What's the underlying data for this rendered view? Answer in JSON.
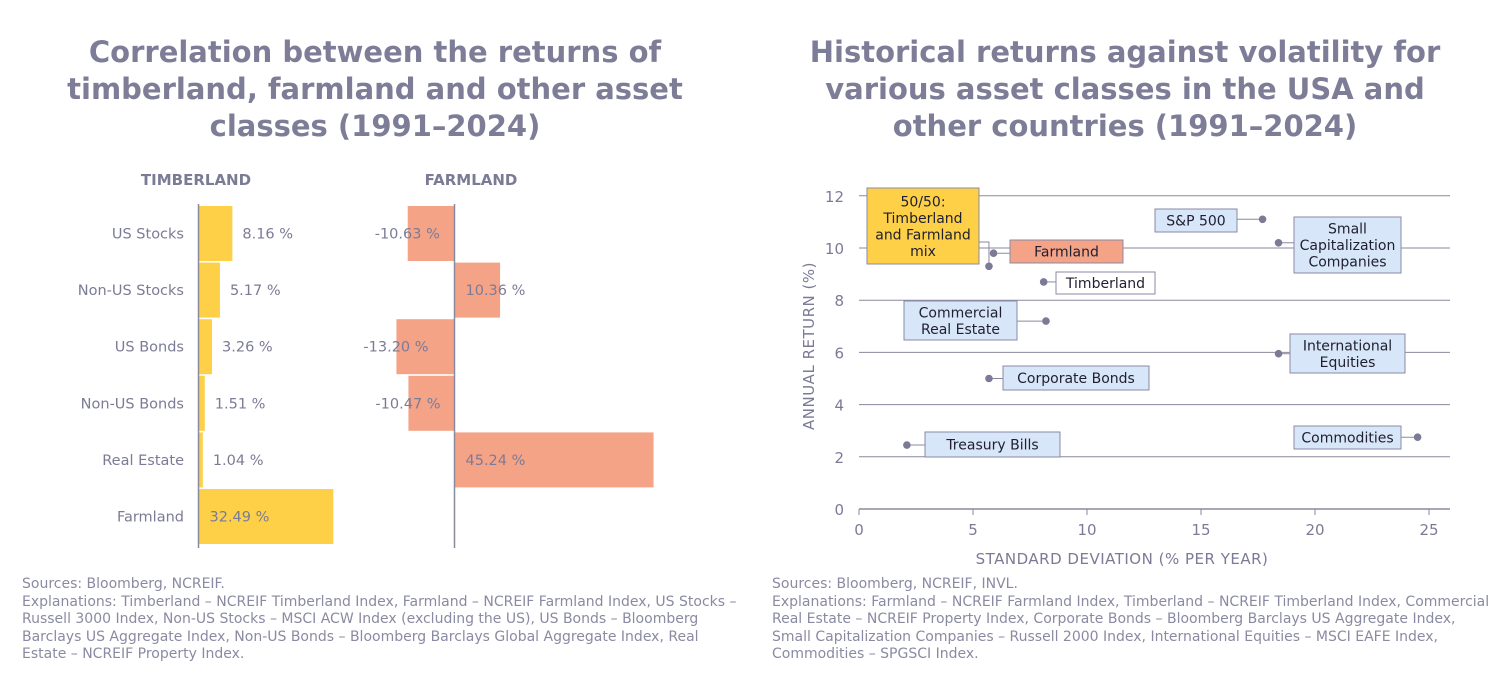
{
  "colors": {
    "title": "#7d7d98",
    "text": "#7b7b96",
    "timberland_bar": "#fdd047",
    "farmland_bar": "#f4a387",
    "axis": "#8a8a9e",
    "label_box_fill": "#d7e6f8",
    "label_box_stroke": "#8a8aa6",
    "highlight_mix": "#fdd047",
    "highlight_farmland": "#f4a387",
    "highlight_timberland": "#ffffff",
    "dot": "#7b7b96"
  },
  "left": {
    "title": "Correlation between the returns of\ntimberland, farmland and other asset\nclasses (1991–2024)",
    "footer": {
      "sources": "Sources: Bloomberg, NCREIF.",
      "explanations": "Explanations: Timberland – NCREIF Timberland Index, Farmland – NCREIF Farmland Index, US Stocks – Russell 3000 Index, Non-US Stocks – MSCI ACW Index (excluding the US), US Bonds – Bloomberg Barclays US Aggregate Index, Non-US Bonds – Bloomberg Barclays Global Aggregate Index, Real Estate – NCREIF Property Index."
    }
  },
  "right": {
    "title": "Historical returns against volatility for\nvarious asset classes in the USA and\nother countries (1991–2024)",
    "footer": {
      "sources": "Sources: Bloomberg, NCREIF, INVL.",
      "explanations": "Explanations: Farmland – NCREIF Farmland Index, Timberland – NCREIF Timberland Index, Commercial Real Estate – NCREIF Property Index, Corporate Bonds – Bloomberg Barclays US Aggregate Index, Small Capitalization Companies – Russell 2000 Index, International Equities – MSCI EAFE Index, Commodities – SPGSCI Index."
    }
  },
  "chart_data": [
    {
      "type": "bar",
      "orientation": "horizontal",
      "categories": [
        "US Stocks",
        "Non-US Stocks",
        "US Bonds",
        "Non-US Bonds",
        "Real Estate",
        "Farmland"
      ],
      "series": [
        {
          "name": "TIMBERLAND",
          "values": [
            8.16,
            5.17,
            3.26,
            1.51,
            1.04,
            32.49
          ],
          "labels": [
            "8.16 %",
            "5.17 %",
            "3.26 %",
            "1.51 %",
            "1.04 %",
            "32.49 %"
          ]
        },
        {
          "name": "FARMLAND",
          "values": [
            -10.63,
            10.36,
            -13.2,
            -10.47,
            45.24,
            null
          ],
          "labels": [
            "-10.63 %",
            "10.36 %",
            "-13.20 %",
            "-10.47 %",
            "45.24 %",
            ""
          ]
        }
      ]
    },
    {
      "type": "scatter",
      "xlabel": "STANDARD DEVIATION (% PER YEAR)",
      "ylabel": "ANNUAL RETURN (%)",
      "xlim": [
        0,
        26
      ],
      "ylim": [
        0,
        12
      ],
      "xticks": [
        0,
        5,
        10,
        15,
        20,
        25
      ],
      "yticks": [
        0,
        2,
        4,
        6,
        8,
        10,
        12
      ],
      "grid": "horizontal",
      "points": [
        {
          "label": "50/50:\nTimberland\nand Farmland\nmix",
          "x": 5.7,
          "y": 9.3,
          "style": "mix"
        },
        {
          "label": "Farmland",
          "x": 5.9,
          "y": 9.8,
          "style": "farmland"
        },
        {
          "label": "Timberland",
          "x": 8.1,
          "y": 8.7,
          "style": "timberland"
        },
        {
          "label": "S&P 500",
          "x": 17.7,
          "y": 11.1,
          "style": "default"
        },
        {
          "label": "Small\nCapitalization\nCompanies",
          "x": 18.4,
          "y": 10.2,
          "style": "default"
        },
        {
          "label": "Commercial\nReal Estate",
          "x": 8.2,
          "y": 7.2,
          "style": "default"
        },
        {
          "label": "International\nEquities",
          "x": 18.4,
          "y": 5.95,
          "style": "default"
        },
        {
          "label": "Corporate Bonds",
          "x": 5.7,
          "y": 5.0,
          "style": "default"
        },
        {
          "label": "Treasury Bills",
          "x": 2.1,
          "y": 2.45,
          "style": "default"
        },
        {
          "label": "Commodities",
          "x": 24.5,
          "y": 2.75,
          "style": "default"
        }
      ]
    }
  ]
}
